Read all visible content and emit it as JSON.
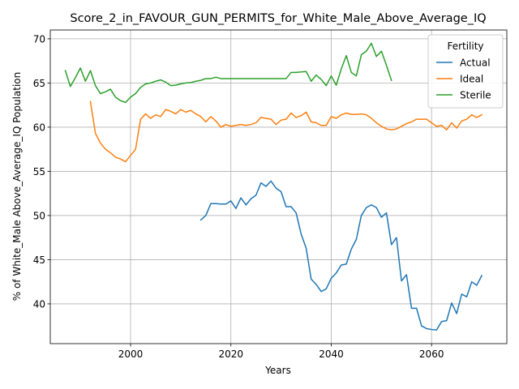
{
  "chart_data": {
    "type": "line",
    "title": "Score_2_in_FAVOUR_GUN_PERMITS_for_White_Male_Above_Average_IQ",
    "xlabel": "Years",
    "ylabel": "% of White_Male Above_Average_IQ Population",
    "xlim": [
      1984,
      2075
    ],
    "ylim": [
      35.5,
      71
    ],
    "xticks": [
      2000,
      2020,
      2040,
      2060
    ],
    "yticks": [
      40,
      45,
      50,
      55,
      60,
      65,
      70
    ],
    "grid": true,
    "legend": {
      "title": "Fertility",
      "placement": "top-right"
    },
    "series": [
      {
        "name": "Actual",
        "color": "#1f77b4",
        "x": [
          2014,
          2015,
          2016,
          2017,
          2018,
          2019,
          2020,
          2021,
          2022,
          2023,
          2024,
          2025,
          2026,
          2027,
          2028,
          2029,
          2030,
          2031,
          2032,
          2033,
          2034,
          2035,
          2036,
          2037,
          2038,
          2039,
          2040,
          2041,
          2042,
          2043,
          2044,
          2045,
          2046,
          2047,
          2048,
          2049,
          2050,
          2051,
          2052,
          2053,
          2054,
          2055,
          2056,
          2057,
          2058,
          2059,
          2060,
          2061,
          2062,
          2063,
          2064,
          2065,
          2066,
          2067,
          2068,
          2069,
          2070
        ],
        "y": [
          49.5,
          50.0,
          51.35,
          51.35,
          51.3,
          51.3,
          51.65,
          50.8,
          52.0,
          51.2,
          51.9,
          52.3,
          53.7,
          53.3,
          53.9,
          53.1,
          52.7,
          51.0,
          51.0,
          50.3,
          47.9,
          46.3,
          42.8,
          42.2,
          41.4,
          41.7,
          42.9,
          43.5,
          44.4,
          44.5,
          46.2,
          47.3,
          50.0,
          50.9,
          51.2,
          50.9,
          49.8,
          50.3,
          46.7,
          47.5,
          42.6,
          43.3,
          39.5,
          39.5,
          37.5,
          37.2,
          37.1,
          37.05,
          38.0,
          38.1,
          40.1,
          38.9,
          41.1,
          40.8,
          42.5,
          42.1,
          43.2
        ]
      },
      {
        "name": "Ideal",
        "color": "#ff7f0e",
        "x": [
          1992,
          1993,
          1994,
          1995,
          1996,
          1997,
          1998,
          1999,
          2000,
          2001,
          2002,
          2003,
          2004,
          2005,
          2006,
          2007,
          2008,
          2009,
          2010,
          2011,
          2012,
          2013,
          2014,
          2015,
          2016,
          2017,
          2018,
          2019,
          2020,
          2021,
          2022,
          2023,
          2024,
          2025,
          2026,
          2027,
          2028,
          2029,
          2030,
          2031,
          2032,
          2033,
          2034,
          2035,
          2036,
          2037,
          2038,
          2039,
          2040,
          2041,
          2042,
          2043,
          2044,
          2045,
          2046,
          2047,
          2048,
          2049,
          2050,
          2051,
          2052,
          2053,
          2054,
          2055,
          2056,
          2057,
          2058,
          2059,
          2060,
          2061,
          2062,
          2063,
          2064,
          2065,
          2066,
          2067,
          2068,
          2069,
          2070
        ],
        "y": [
          62.9,
          59.3,
          58.2,
          57.5,
          57.1,
          56.6,
          56.4,
          56.1,
          56.8,
          57.5,
          60.9,
          61.5,
          61.0,
          61.4,
          61.2,
          62.0,
          61.8,
          61.5,
          62.0,
          61.7,
          61.9,
          61.5,
          61.2,
          60.6,
          61.2,
          60.7,
          60.0,
          60.3,
          60.1,
          60.2,
          60.3,
          60.2,
          60.3,
          60.5,
          61.1,
          61.0,
          60.9,
          60.3,
          60.8,
          60.9,
          61.6,
          61.1,
          61.3,
          61.7,
          60.6,
          60.5,
          60.2,
          60.2,
          61.2,
          61.0,
          61.4,
          61.6,
          61.45,
          61.45,
          61.5,
          61.4,
          61.0,
          60.5,
          60.1,
          59.8,
          59.7,
          59.8,
          60.1,
          60.4,
          60.6,
          60.9,
          60.9,
          60.9,
          60.5,
          60.1,
          60.2,
          59.7,
          60.5,
          59.9,
          60.7,
          60.9,
          61.4,
          61.1,
          61.4
        ]
      },
      {
        "name": "Sterile",
        "color": "#2ca02c",
        "x": [
          1987,
          1988,
          1989,
          1990,
          1991,
          1992,
          1993,
          1994,
          1995,
          1996,
          1997,
          1998,
          1999,
          2000,
          2001,
          2002,
          2003,
          2004,
          2005,
          2006,
          2007,
          2008,
          2009,
          2010,
          2011,
          2012,
          2013,
          2014,
          2015,
          2016,
          2017,
          2018,
          2019,
          2020,
          2021,
          2022,
          2023,
          2024,
          2025,
          2026,
          2027,
          2028,
          2029,
          2030,
          2031,
          2032,
          2033,
          2034,
          2035,
          2036,
          2037,
          2038,
          2039,
          2040,
          2041,
          2042,
          2043,
          2044,
          2045,
          2046,
          2047,
          2048,
          2049,
          2050,
          2051,
          2052
        ],
        "y": [
          66.4,
          64.6,
          65.6,
          66.7,
          65.2,
          66.4,
          64.7,
          63.8,
          64.0,
          64.3,
          63.4,
          63.0,
          62.8,
          63.4,
          63.8,
          64.5,
          64.9,
          65.0,
          65.2,
          65.35,
          65.1,
          64.7,
          64.75,
          64.9,
          65.0,
          65.05,
          65.2,
          65.3,
          65.5,
          65.5,
          65.65,
          65.5,
          65.5,
          65.5,
          65.5,
          65.5,
          65.5,
          65.5,
          65.5,
          65.5,
          65.5,
          65.5,
          65.5,
          65.5,
          65.5,
          66.2,
          66.2,
          66.25,
          66.3,
          65.2,
          65.9,
          65.4,
          64.7,
          65.8,
          64.75,
          66.6,
          68.1,
          66.2,
          65.8,
          68.2,
          68.6,
          69.5,
          68.0,
          68.6,
          67.0,
          65.3
        ]
      }
    ]
  }
}
